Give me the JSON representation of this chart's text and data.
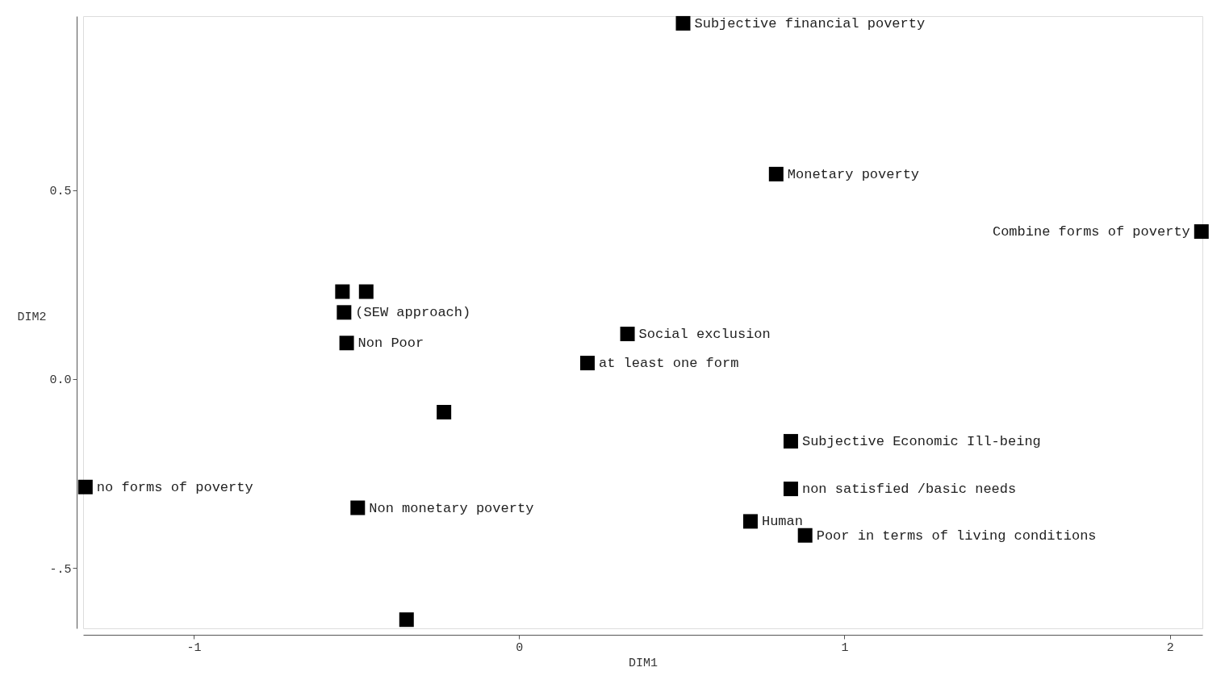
{
  "chart_data": {
    "type": "scatter",
    "xlabel": "DIM1",
    "ylabel": "DIM2",
    "xlim": [
      -1.34,
      2.1
    ],
    "ylim": [
      -0.66,
      0.96
    ],
    "xticks": [
      -1,
      0,
      1,
      2
    ],
    "yticks": [
      {
        "value": -0.5,
        "label": "-.5"
      },
      {
        "value": 0,
        "label": "0.0"
      },
      {
        "value": 0.5,
        "label": "0.5"
      }
    ],
    "marker": "square",
    "grid": false,
    "series": [
      {
        "color": "#000000",
        "x": [
          0.504,
          0.79,
          2.097,
          -0.543,
          -0.47,
          -0.538,
          0.333,
          -0.53,
          0.21,
          -0.231,
          0.835,
          -1.333,
          0.835,
          -0.496,
          0.711,
          0.879,
          -0.346
        ],
        "values": [
          0.941,
          0.542,
          0.39,
          0.231,
          0.231,
          0.176,
          0.119,
          0.095,
          0.042,
          -0.088,
          -0.165,
          -0.286,
          -0.291,
          -0.341,
          -0.377,
          -0.414,
          -0.637
        ]
      }
    ],
    "annotations": [
      {
        "text": "Subjective financial poverty",
        "x": 0.504,
        "y": 0.941
      },
      {
        "text": "Monetary poverty",
        "x": 0.79,
        "y": 0.542
      },
      {
        "text": "Combine forms of poverty",
        "x": 2.097,
        "y": 0.39
      },
      {
        "text": "(SEW approach)",
        "x": -0.538,
        "y": 0.176
      },
      {
        "text": "Social exclusion",
        "x": 0.333,
        "y": 0.119
      },
      {
        "text": "Non Poor",
        "x": -0.53,
        "y": 0.095
      },
      {
        "text": "at least one form",
        "x": 0.21,
        "y": 0.042
      },
      {
        "text": "Subjective Economic Ill-being",
        "x": 0.835,
        "y": -0.165
      },
      {
        "text": "no forms of poverty",
        "x": -1.333,
        "y": -0.286
      },
      {
        "text": "non satisfied /basic needs",
        "x": 0.835,
        "y": -0.291
      },
      {
        "text": "Non monetary poverty",
        "x": -0.496,
        "y": -0.341
      },
      {
        "text": "Human",
        "x": 0.711,
        "y": -0.377
      },
      {
        "text": "Poor in terms of living conditions",
        "x": 0.879,
        "y": -0.414
      }
    ]
  }
}
